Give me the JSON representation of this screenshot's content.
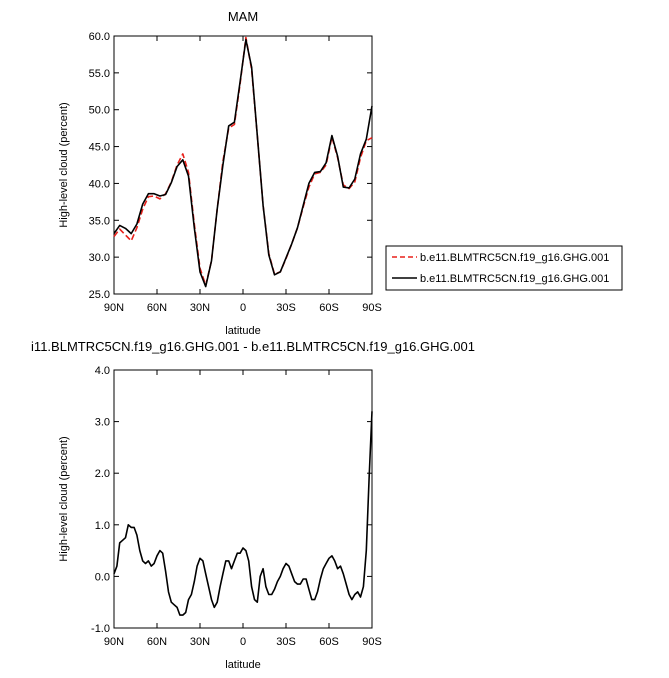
{
  "chart_data": [
    {
      "type": "line",
      "title": "MAM",
      "xlabel": "latitude",
      "ylabel": "High-level cloud (percent)",
      "xlim": [
        90,
        -90
      ],
      "ylim": [
        25.0,
        60.0
      ],
      "x_ticks": [
        90,
        60,
        30,
        0,
        -30,
        -60,
        -90
      ],
      "x_tick_labels": [
        "90N",
        "60N",
        "30N",
        "0",
        "30S",
        "60S",
        "90S"
      ],
      "y_ticks": [
        25.0,
        30.0,
        35.0,
        40.0,
        45.0,
        50.0,
        55.0,
        60.0
      ],
      "y_tick_labels": [
        "25.0",
        "30.0",
        "35.0",
        "40.0",
        "45.0",
        "50.0",
        "55.0",
        "60.0"
      ],
      "legend_position": "right",
      "x": [
        90,
        86,
        82,
        78,
        74,
        70,
        66,
        62,
        58,
        54,
        50,
        46,
        42,
        38,
        34,
        30,
        26,
        22,
        18,
        14,
        10,
        6,
        2,
        -2,
        -6,
        -10,
        -14,
        -18,
        -22,
        -26,
        -30,
        -34,
        -38,
        -42,
        -46,
        -50,
        -54,
        -58,
        -62,
        -66,
        -70,
        -74,
        -78,
        -82,
        -86,
        -90
      ],
      "series": [
        {
          "name": "b.e11.BLMTRC5CN.f19_g16.GHG.001",
          "color": "#e8201a",
          "dash": "dashed",
          "values": [
            32.8,
            33.8,
            33.0,
            32.2,
            34.0,
            36.5,
            38.2,
            38.3,
            37.9,
            38.6,
            40.2,
            42.5,
            44.0,
            41.5,
            34.5,
            28.5,
            26.2,
            29.5,
            36.5,
            43.0,
            47.5,
            48.0,
            53.5,
            59.8,
            55.5,
            46.5,
            37.0,
            30.5,
            27.7,
            28.0,
            29.8,
            31.8,
            34.0,
            36.8,
            39.5,
            41.3,
            41.5,
            42.5,
            46.3,
            43.5,
            39.8,
            39.3,
            40.2,
            43.5,
            45.8,
            46.2
          ]
        },
        {
          "name": "b.e11.BLMTRC5CN.f19_g16.GHG.001",
          "color": "#000000",
          "dash": "solid",
          "values": [
            33.2,
            34.3,
            33.9,
            33.2,
            34.5,
            37.2,
            38.6,
            38.6,
            38.3,
            38.5,
            40.1,
            42.3,
            43.2,
            41.0,
            34.0,
            28.0,
            26.0,
            29.5,
            36.5,
            42.5,
            47.8,
            48.3,
            53.8,
            59.5,
            55.8,
            46.5,
            37.0,
            30.3,
            27.6,
            28.0,
            29.9,
            31.8,
            34.0,
            37.0,
            40.0,
            41.5,
            41.6,
            42.8,
            46.5,
            43.7,
            39.5,
            39.4,
            40.6,
            44.0,
            46.0,
            50.5
          ]
        }
      ]
    },
    {
      "type": "line",
      "title": "i11.BLMTRC5CN.f19_g16.GHG.001 - b.e11.BLMTRC5CN.f19_g16.GHG.001",
      "xlabel": "latitude",
      "ylabel": "High-level cloud (percent)",
      "xlim": [
        90,
        -90
      ],
      "ylim": [
        -1.0,
        4.0
      ],
      "x_ticks": [
        90,
        60,
        30,
        0,
        -30,
        -60,
        -90
      ],
      "x_tick_labels": [
        "90N",
        "60N",
        "30N",
        "0",
        "30S",
        "60S",
        "90S"
      ],
      "y_ticks": [
        -1.0,
        0.0,
        1.0,
        2.0,
        3.0,
        4.0
      ],
      "y_tick_labels": [
        "-1.0",
        "0.0",
        "1.0",
        "2.0",
        "3.0",
        "4.0"
      ],
      "x": [
        90,
        88,
        86,
        84,
        82,
        80,
        78,
        76,
        74,
        72,
        70,
        68,
        66,
        64,
        62,
        60,
        58,
        56,
        54,
        52,
        50,
        48,
        46,
        44,
        42,
        40,
        38,
        36,
        34,
        32,
        30,
        28,
        26,
        24,
        22,
        20,
        18,
        16,
        14,
        12,
        10,
        8,
        6,
        4,
        2,
        0,
        -2,
        -4,
        -6,
        -8,
        -10,
        -12,
        -14,
        -16,
        -18,
        -20,
        -22,
        -24,
        -26,
        -28,
        -30,
        -32,
        -34,
        -36,
        -38,
        -40,
        -42,
        -44,
        -46,
        -48,
        -50,
        -52,
        -54,
        -56,
        -58,
        -60,
        -62,
        -64,
        -66,
        -68,
        -70,
        -72,
        -74,
        -76,
        -78,
        -80,
        -82,
        -84,
        -86,
        -88,
        -90
      ],
      "series": [
        {
          "name": "",
          "color": "#000000",
          "dash": "solid",
          "values": [
            0.05,
            0.2,
            0.65,
            0.7,
            0.75,
            1.0,
            0.95,
            0.95,
            0.8,
            0.5,
            0.3,
            0.25,
            0.3,
            0.2,
            0.25,
            0.4,
            0.5,
            0.45,
            0.1,
            -0.3,
            -0.5,
            -0.55,
            -0.6,
            -0.75,
            -0.75,
            -0.7,
            -0.45,
            -0.35,
            -0.1,
            0.2,
            0.35,
            0.3,
            0.05,
            -0.2,
            -0.45,
            -0.6,
            -0.5,
            -0.2,
            0.05,
            0.3,
            0.3,
            0.15,
            0.3,
            0.45,
            0.45,
            0.55,
            0.5,
            0.3,
            -0.2,
            -0.45,
            -0.5,
            0.0,
            0.15,
            -0.2,
            -0.35,
            -0.35,
            -0.25,
            -0.1,
            0.0,
            0.15,
            0.25,
            0.2,
            0.05,
            -0.1,
            -0.15,
            -0.15,
            -0.05,
            -0.05,
            -0.25,
            -0.45,
            -0.45,
            -0.3,
            -0.05,
            0.15,
            0.25,
            0.35,
            0.4,
            0.3,
            0.15,
            0.2,
            0.05,
            -0.15,
            -0.35,
            -0.45,
            -0.35,
            -0.3,
            -0.4,
            -0.2,
            0.5,
            1.9,
            3.2
          ]
        }
      ]
    }
  ]
}
